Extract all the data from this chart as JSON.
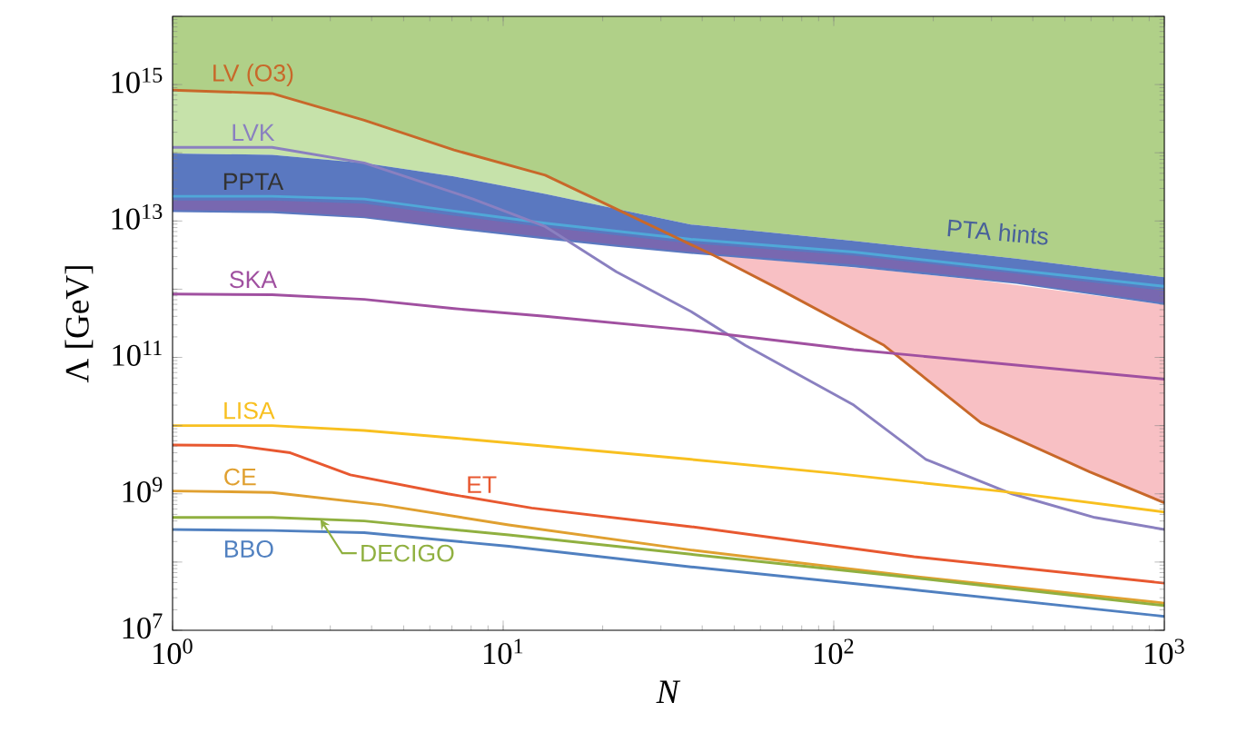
{
  "chart_data": {
    "type": "line",
    "xlabel": "*N*",
    "ylabel": "Λ [GeV]",
    "log": "xy",
    "xlim": [
      1,
      1000
    ],
    "ylim": [
      10000000.0,
      1e+16
    ],
    "xticks": [
      {
        "value": 1,
        "label": "10$^{0}$"
      },
      {
        "value": 10,
        "label": "10$^{1}$"
      },
      {
        "value": 100,
        "label": "10$^{2}$"
      },
      {
        "value": 1000,
        "label": "10$^{3}$"
      }
    ],
    "yticks": [
      {
        "value": 10000000.0,
        "label": "10$^{7}$"
      },
      {
        "value": 100000000.0,
        "label": null
      },
      {
        "value": 1000000000.0,
        "label": "10$^{9}$"
      },
      {
        "value": 10000000000.0,
        "label": null
      },
      {
        "value": 100000000000.0,
        "label": "10$^{11}$"
      },
      {
        "value": 1000000000000.0,
        "label": null
      },
      {
        "value": 10000000000000.0,
        "label": "10$^{13}$"
      },
      {
        "value": 100000000000000.0,
        "label": null
      },
      {
        "value": 1000000000000000.0,
        "label": "10$^{15}$"
      },
      {
        "value": 1e+16,
        "label": null
      }
    ],
    "annotations": [
      {
        "text": "PPTA",
        "x": 1.75,
        "y": 23000000000000.0
      }
    ],
    "series": [
      {
        "type": "area",
        "color": "#b0d088",
        "x": [
          1,
          2,
          3.8,
          7.1,
          13.4,
          22,
          37,
          115,
          357,
          1000
        ],
        "values": [
          null,
          null,
          null,
          null,
          null,
          null,
          null,
          null,
          null,
          null
        ],
        "upper": [
          1e+16,
          1e+16,
          1e+16,
          1e+16,
          1e+16,
          1e+16,
          1e+16,
          1e+16,
          1e+16,
          1e+16
        ],
        "lower": [
          830000000000000.0,
          740000000000000.0,
          300000000000000.0,
          110000000000000.0,
          47000000000000.0,
          15000000000000.0,
          8900000000000.0,
          5100000000000.0,
          2800000000000.0,
          1500000000000.0
        ]
      },
      {
        "type": "area",
        "color": "#c6e2aa",
        "x": [
          1,
          2,
          3.8,
          7.1,
          13.4,
          22
        ],
        "values": [
          null,
          null,
          null,
          null,
          null,
          null
        ],
        "upper": [
          830000000000000.0,
          740000000000000.0,
          300000000000000.0,
          110000000000000.0,
          47000000000000.0,
          15000000000000.0
        ],
        "lower": [
          98000000000000.0,
          93000000000000.0,
          71000000000000.0,
          45000000000000.0,
          25000000000000.0,
          15000000000000.0
        ]
      },
      {
        "type": "area",
        "color": "#f8c0c4",
        "x": [
          43,
          69,
          142,
          279,
          595,
          1000
        ],
        "values": [
          null,
          null,
          null,
          null,
          null,
          null
        ],
        "upper": [
          3200000000000.0,
          2600000000000.0,
          1900000000000.0,
          1350000000000.0,
          830000000000.0,
          590000000000.0
        ],
        "lower": [
          3200000000000.0,
          980000000000.0,
          150000000000.0,
          11000000000.0,
          2100000000.0,
          740000000.0
        ]
      },
      {
        "type": "area",
        "name": "PTA hints",
        "color": "#5a78c0",
        "x": [
          1,
          2,
          3.8,
          7.1,
          13.4,
          22,
          37,
          115,
          357,
          1000
        ],
        "values": [
          null,
          null,
          null,
          null,
          null,
          null,
          null,
          null,
          null,
          null
        ],
        "upper": [
          98000000000000.0,
          93000000000000.0,
          71000000000000.0,
          45000000000000.0,
          25000000000000.0,
          15000000000000.0,
          8900000000000.0,
          5100000000000.0,
          2800000000000.0,
          1500000000000.0
        ],
        "lower": [
          13500000000000.0,
          13000000000000.0,
          11000000000000.0,
          7600000000000.0,
          5400000000000.0,
          4200000000000.0,
          3300000000000.0,
          2100000000000.0,
          1200000000000.0,
          590000000000.0
        ]
      },
      {
        "type": "area",
        "color": "#7868b0",
        "x": [
          1,
          2,
          3.8,
          7.1,
          13.4,
          22,
          37,
          115,
          357,
          1000
        ],
        "values": [
          null,
          null,
          null,
          null,
          null,
          null,
          null,
          null,
          null,
          null
        ],
        "upper": [
          20000000000000.0,
          20000000000000.0,
          18000000000000.0,
          12000000000000.0,
          8100000000000.0,
          6200000000000.0,
          4700000000000.0,
          3100000000000.0,
          1700000000000.0,
          950000000000.0
        ],
        "lower": [
          14500000000000.0,
          14000000000000.0,
          11500000000000.0,
          8100000000000.0,
          5800000000000.0,
          4500000000000.0,
          3500000000000.0,
          2300000000000.0,
          1260000000000.0,
          630000000000.0
        ]
      },
      {
        "color": "#50a8d8",
        "x": [
          1,
          2,
          3.8,
          7.1,
          13.4,
          22,
          37,
          115,
          357,
          1000
        ],
        "values": [
          23000000000000.0,
          23000000000000.0,
          21000000000000.0,
          14000000000000.0,
          9300000000000.0,
          7100000000000.0,
          5400000000000.0,
          3500000000000.0,
          1900000000000.0,
          1100000000000.0
        ]
      },
      {
        "name": "LV (O3)",
        "color": "#c8682a",
        "x": [
          1,
          2,
          3.8,
          7.1,
          13.4,
          22,
          37,
          43,
          69,
          142,
          279,
          595,
          1000
        ],
        "values": [
          830000000000000.0,
          740000000000000.0,
          300000000000000.0,
          110000000000000.0,
          47000000000000.0,
          15000000000000.0,
          4500000000000.0,
          3200000000000.0,
          980000000000.0,
          150000000000.0,
          11000000000.0,
          2100000000.0,
          740000000.0
        ]
      },
      {
        "name": "LVK",
        "color": "#8a80c0",
        "x": [
          1,
          2,
          3.8,
          8.1,
          13.4,
          22,
          37,
          54,
          115,
          190,
          346,
          616,
          1000
        ],
        "values": [
          120000000000000.0,
          120000000000000.0,
          71000000000000.0,
          21000000000000.0,
          8300000000000.0,
          1800000000000.0,
          470000000000.0,
          150000000000.0,
          20000000000.0,
          3200000000.0,
          1000000000.0,
          450000000.0,
          300000000.0
        ]
      },
      {
        "name": "SKA",
        "color": "#a050a0",
        "x": [
          1,
          2,
          3.8,
          7.1,
          13.4,
          37,
          115,
          1000
        ],
        "values": [
          850000000000.0,
          830000000000.0,
          710000000000.0,
          520000000000.0,
          400000000000.0,
          250000000000.0,
          130000000000.0,
          48000000000.0
        ]
      },
      {
        "name": "LISA",
        "color": "#f8c020",
        "x": [
          1,
          2,
          3.8,
          7.1,
          13.4,
          37,
          100,
          316,
          1000
        ],
        "values": [
          10000000000.0,
          10000000000.0,
          8500000000.0,
          6600000000.0,
          5000000000.0,
          3200000000.0,
          2000000000.0,
          1100000000.0,
          540000000.0
        ]
      },
      {
        "name": "ET",
        "color": "#e85830",
        "x": [
          1,
          1.56,
          2.27,
          3.45,
          6.8,
          12.2,
          37,
          175,
          1000
        ],
        "values": [
          5200000000.0,
          5100000000.0,
          4000000000.0,
          1900000000.0,
          1000000000.0,
          620000000.0,
          330000000.0,
          120000000.0,
          49000000.0
        ]
      },
      {
        "name": "CE",
        "color": "#e0a030",
        "x": [
          1,
          2,
          4.3,
          10.4,
          37,
          168,
          1000
        ],
        "values": [
          1100000000.0,
          1050000000.0,
          690000000.0,
          350000000.0,
          150000000.0,
          63000000.0,
          25000000.0
        ]
      },
      {
        "name": "DECIGO",
        "color": "#90b040",
        "x": [
          1,
          2,
          3.8,
          10.4,
          37,
          168,
          1000
        ],
        "values": [
          450000000.0,
          450000000.0,
          400000000.0,
          250000000.0,
          130000000.0,
          60000000.0,
          23000000.0
        ]
      },
      {
        "name": "BBO",
        "color": "#5080c0",
        "x": [
          1,
          2,
          3.8,
          10.4,
          37,
          168,
          1000
        ],
        "values": [
          300000000.0,
          290000000.0,
          270000000.0,
          170000000.0,
          85000000.0,
          40000000.0,
          16000000.0
        ]
      }
    ]
  }
}
